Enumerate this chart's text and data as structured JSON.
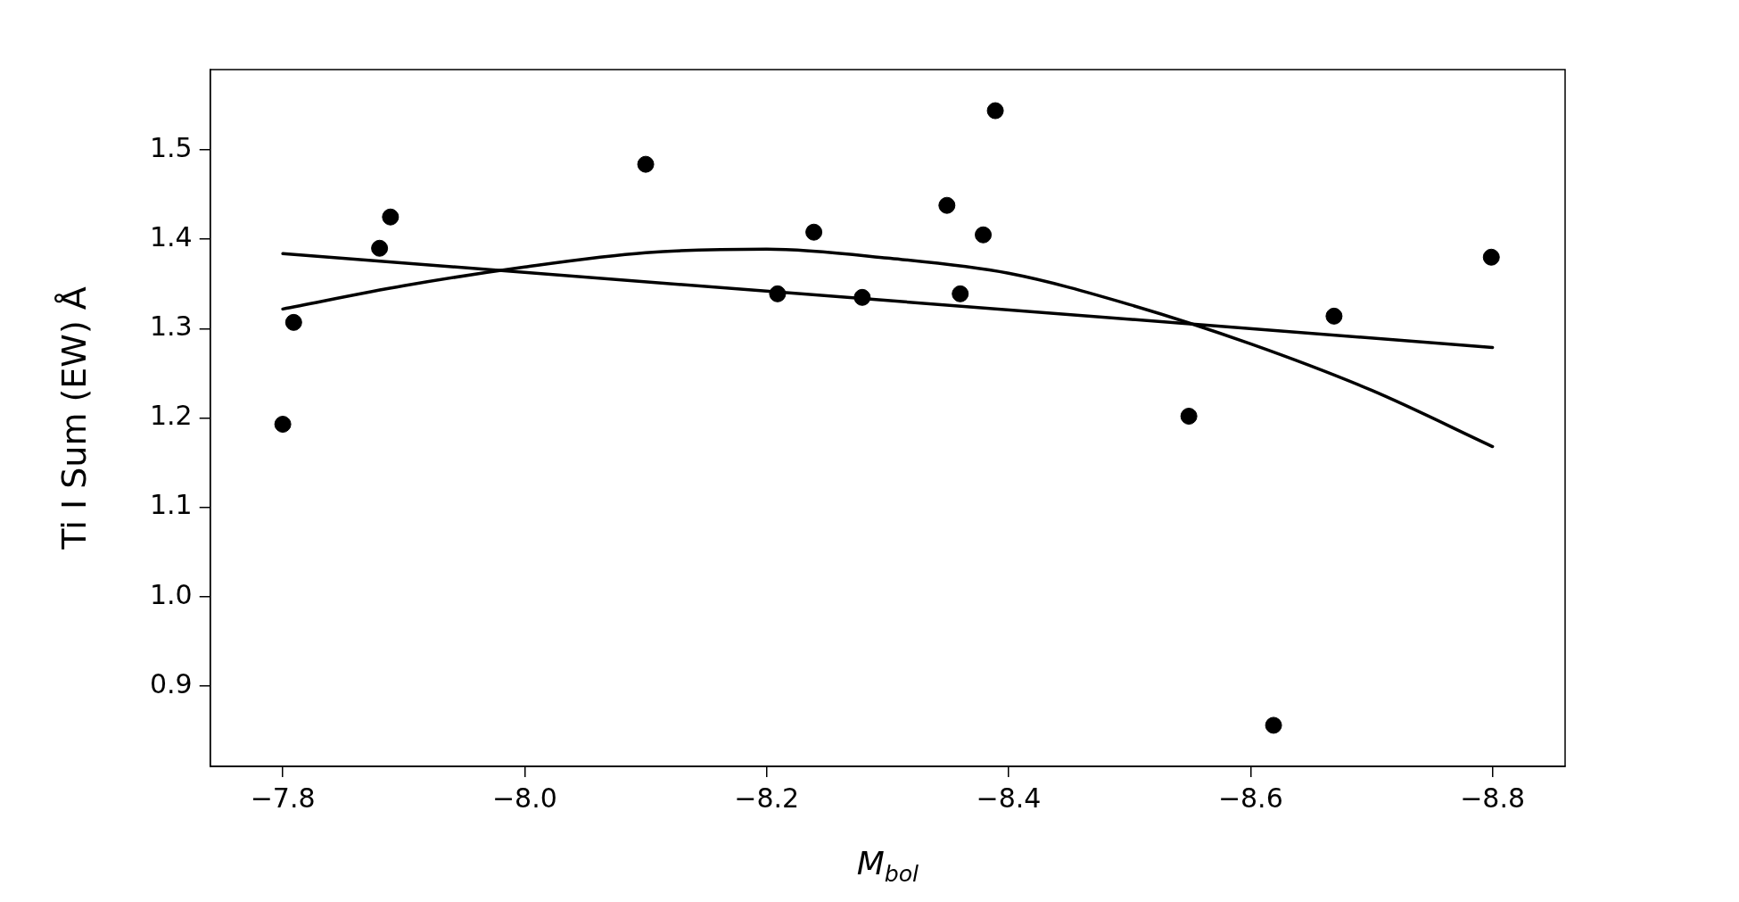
{
  "chart_data": {
    "type": "scatter",
    "xlabel": "M$_{bol}$",
    "ylabel": "Ti I Sum (EW) Å",
    "xlim": [
      -7.74,
      -8.86
    ],
    "ylim": [
      0.81,
      1.59
    ],
    "xticks": [
      {
        "value": -7.8,
        "label": "−7.8"
      },
      {
        "value": -8.0,
        "label": "−8.0"
      },
      {
        "value": -8.2,
        "label": "−8.2"
      },
      {
        "value": -8.4,
        "label": "−8.4"
      },
      {
        "value": -8.6,
        "label": "−8.6"
      },
      {
        "value": -8.8,
        "label": "−8.8"
      }
    ],
    "yticks": [
      0.9,
      {
        "value": 1.0,
        "label": "1.0"
      },
      1.1,
      1.2,
      1.3,
      1.4,
      1.5
    ],
    "grid": false,
    "legend": false,
    "series": [
      {
        "color": "#000000",
        "marker": "circle",
        "x": [
          -7.8,
          -7.809,
          -7.88,
          -7.889,
          -8.1,
          -8.209,
          -8.239,
          -8.279,
          -8.349,
          -8.36,
          -8.379,
          -8.389,
          -8.549,
          -8.619,
          -8.669,
          -8.799
        ],
        "values": [
          1.193,
          1.307,
          1.39,
          1.425,
          1.484,
          1.339,
          1.408,
          1.335,
          1.438,
          1.339,
          1.405,
          1.544,
          1.202,
          0.856,
          1.314,
          1.38
        ]
      },
      {
        "type": "line",
        "color": "#000000",
        "marker": "none",
        "line_style": "solid",
        "x": [
          -7.8,
          -8.8
        ],
        "values": [
          1.384,
          1.279
        ]
      },
      {
        "type": "line",
        "color": "#000000",
        "marker": "none",
        "line_style": "solid",
        "x": [
          -7.8,
          -7.9,
          -8.0,
          -8.1,
          -8.2,
          -8.3,
          -8.4,
          -8.5,
          -8.6,
          -8.7,
          -8.8
        ],
        "values": [
          1.322,
          1.348,
          1.369,
          1.385,
          1.389,
          1.379,
          1.362,
          1.327,
          1.283,
          1.231,
          1.168
        ]
      }
    ]
  }
}
